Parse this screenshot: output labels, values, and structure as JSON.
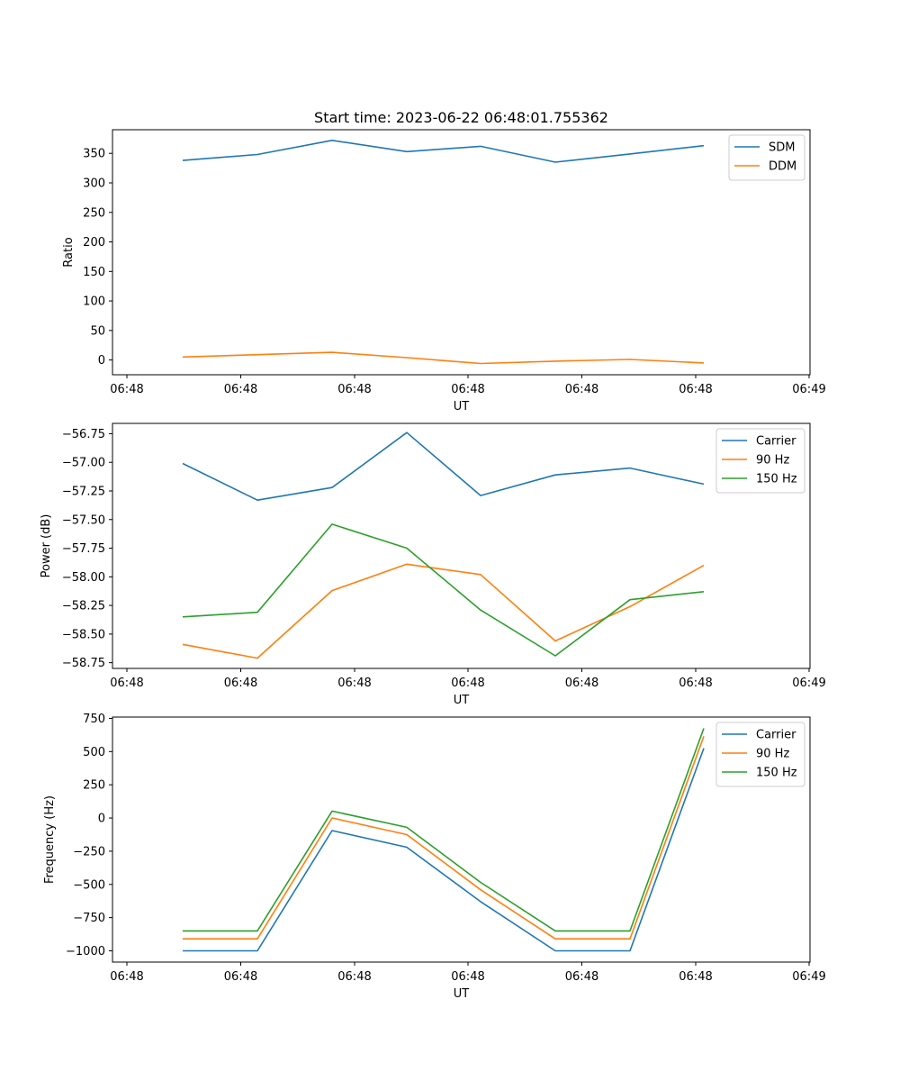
{
  "figure": {
    "title": "Start time: 2023-06-22 06:48:01.755362"
  },
  "chart_data": [
    {
      "type": "line",
      "title": "Start time: 2023-06-22 06:48:01.755362",
      "xlabel": "UT",
      "ylabel": "Ratio",
      "x_tick_labels": [
        "06:48",
        "06:48",
        "06:48",
        "06:48",
        "06:48",
        "06:48",
        "06:49"
      ],
      "y_ticks": [
        0,
        50,
        100,
        150,
        200,
        250,
        300,
        350
      ],
      "ylim": [
        -25,
        390
      ],
      "legend_position": "top-right",
      "series": [
        {
          "name": "SDM",
          "color": "#1f77b4",
          "values": [
            338,
            348,
            372,
            353,
            362,
            335,
            349,
            363
          ]
        },
        {
          "name": "DDM",
          "color": "#ff7f0e",
          "values": [
            5,
            9,
            13,
            4,
            -6,
            -2,
            1,
            -5
          ]
        }
      ]
    },
    {
      "type": "line",
      "title": "",
      "xlabel": "UT",
      "ylabel": "Power (dB)",
      "x_tick_labels": [
        "06:48",
        "06:48",
        "06:48",
        "06:48",
        "06:48",
        "06:48",
        "06:49"
      ],
      "y_ticks": [
        -58.75,
        -58.5,
        -58.25,
        -58.0,
        -57.75,
        -57.5,
        -57.25,
        -57.0,
        -56.75
      ],
      "y_tick_labels": [
        "−58.75",
        "−58.50",
        "−58.25",
        "−58.00",
        "−57.75",
        "−57.50",
        "−57.25",
        "−57.00",
        "−56.75"
      ],
      "ylim": [
        -58.8,
        -56.66
      ],
      "legend_position": "top-right",
      "series": [
        {
          "name": "Carrier",
          "color": "#1f77b4",
          "values": [
            -57.01,
            -57.33,
            -57.22,
            -56.74,
            -57.29,
            -57.11,
            -57.05,
            -57.19
          ]
        },
        {
          "name": "90 Hz",
          "color": "#ff7f0e",
          "values": [
            -58.59,
            -58.71,
            -58.12,
            -57.89,
            -57.98,
            -58.56,
            -58.26,
            -57.9
          ]
        },
        {
          "name": "150 Hz",
          "color": "#2ca02c",
          "values": [
            -58.35,
            -58.31,
            -57.54,
            -57.75,
            -58.29,
            -58.69,
            -58.2,
            -58.13
          ]
        }
      ]
    },
    {
      "type": "line",
      "title": "",
      "xlabel": "UT",
      "ylabel": "Frequency (Hz)",
      "x_tick_labels": [
        "06:48",
        "06:48",
        "06:48",
        "06:48",
        "06:48",
        "06:48",
        "06:49"
      ],
      "y_ticks": [
        -1000,
        -750,
        -500,
        -250,
        0,
        250,
        500,
        750
      ],
      "y_tick_labels": [
        "−1000",
        "−750",
        "−500",
        "−250",
        "0",
        "250",
        "500",
        "750"
      ],
      "ylim": [
        -1085,
        760
      ],
      "legend_position": "top-right",
      "series": [
        {
          "name": "Carrier",
          "color": "#1f77b4",
          "values": [
            -1000,
            -1000,
            -95,
            -220,
            -630,
            -1000,
            -1000,
            525
          ]
        },
        {
          "name": "90 Hz",
          "color": "#ff7f0e",
          "values": [
            -910,
            -910,
            0,
            -125,
            -540,
            -910,
            -910,
            615
          ]
        },
        {
          "name": "150 Hz",
          "color": "#2ca02c",
          "values": [
            -850,
            -850,
            52,
            -70,
            -485,
            -850,
            -850,
            675
          ]
        }
      ]
    }
  ]
}
